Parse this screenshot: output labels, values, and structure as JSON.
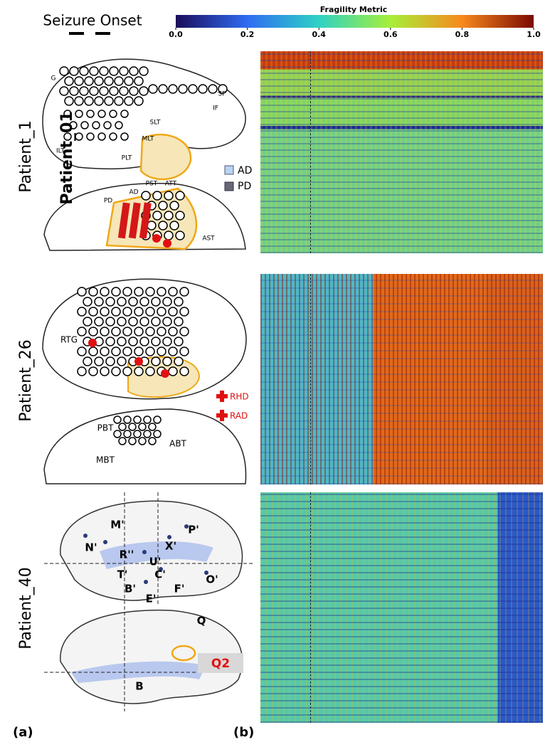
{
  "header": {
    "seizure_onset": "Seizure Onset"
  },
  "colorbar": {
    "title": "Fragility Metric",
    "lim": [
      0,
      1
    ],
    "ticks": [
      {
        "value": 0,
        "label": "0.0"
      },
      0.2,
      0.4,
      0.6,
      0.8,
      {
        "value": 1,
        "label": "1.0"
      }
    ]
  },
  "panels": [
    {
      "patient": "Patient_1",
      "overlay": "Patient_01",
      "legend": [
        "AD",
        "PD"
      ],
      "regions": [
        "G",
        "SF",
        "IF",
        "SLT",
        "MLT",
        "PLT",
        "ILT",
        "PST",
        "ATT",
        "PD",
        "AD",
        "AST"
      ]
    },
    {
      "patient": "Patient_26",
      "legend": [
        "RHD",
        "RAD"
      ],
      "regions": [
        "RTG",
        "PBT",
        "ABT",
        "MBT"
      ]
    },
    {
      "patient": "Patient_40",
      "callout": "Q2",
      "regions": [
        "M'",
        "N'",
        "R''",
        "X'",
        "P'",
        "U'",
        "T'",
        "C'",
        "O'",
        "B'",
        "F'",
        "E'",
        "Q",
        "B"
      ]
    }
  ],
  "labels": {
    "a": "(a)",
    "b": "(b)"
  }
}
